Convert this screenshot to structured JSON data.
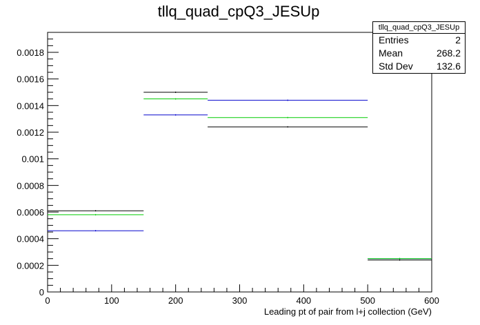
{
  "chart_data": {
    "type": "step",
    "title": "tllq_quad_cpQ3_JESUp",
    "xlabel": "Leading pt of pair from l+j collection (GeV)",
    "ylabel": "",
    "xlim": [
      0,
      600
    ],
    "ylim": [
      0,
      0.00195
    ],
    "xticks": [
      0,
      100,
      200,
      300,
      400,
      500,
      600
    ],
    "yticks": [
      0,
      0.0002,
      0.0004,
      0.0006,
      0.0008,
      0.001,
      0.0012,
      0.0014,
      0.0016,
      0.0018
    ],
    "ytick_labels": [
      "0",
      "0.0002",
      "0.0004",
      "0.0006",
      "0.0008",
      "0.001",
      "0.0012",
      "0.0014",
      "0.0016",
      "0.0018"
    ],
    "bin_edges": [
      0,
      150,
      250,
      500,
      600
    ],
    "series": [
      {
        "color": "#000000",
        "values": [
          0.00061,
          0.0015,
          0.00124,
          0.00024
        ]
      },
      {
        "color": "#0000cc",
        "values": [
          0.00046,
          0.00133,
          0.00144,
          0.00025
        ]
      },
      {
        "color": "#00cc00",
        "values": [
          0.00058,
          0.00145,
          0.00131,
          0.00025
        ]
      }
    ],
    "grid": false,
    "stats": {
      "name": "tllq_quad_cpQ3_JESUp",
      "rows": [
        {
          "label": "Entries",
          "value": "2"
        },
        {
          "label": "Mean",
          "value": "268.2"
        },
        {
          "label": "Std Dev",
          "value": "132.6"
        }
      ]
    }
  }
}
